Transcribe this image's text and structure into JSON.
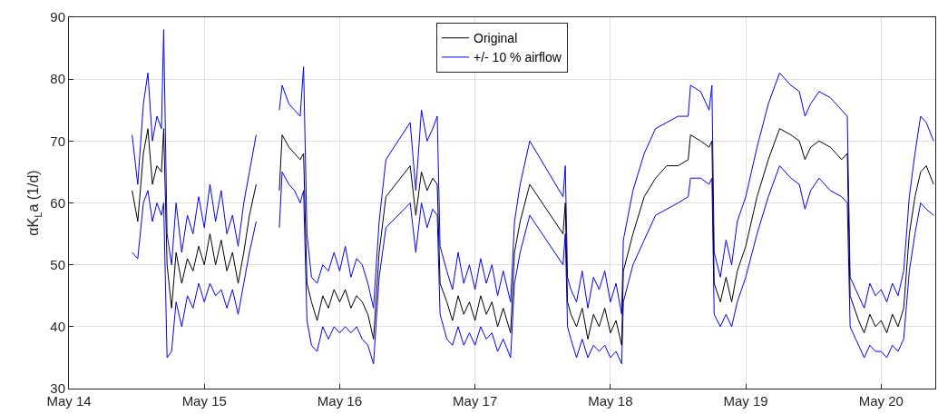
{
  "chart_data": {
    "type": "line",
    "ylabel": "αK$_{L}$a (1/d)",
    "x": [
      "--05-14T11:12",
      "--05-14T12:12",
      "--05-14T13:12",
      "--05-14T14:00",
      "--05-14T14:48",
      "--05-14T15:36",
      "--05-14T16:24",
      "--05-14T16:48",
      "--05-14T17:24",
      "--05-14T18:12",
      "--05-14T19:00",
      "--05-14T20:00",
      "--05-14T21:00",
      "--05-14T22:00",
      "--05-14T23:00",
      "--05-15T00:00",
      "--05-15T01:00",
      "--05-15T02:00",
      "--05-15T03:00",
      "--05-15T04:00",
      "--05-15T05:00",
      "--05-15T06:00",
      "--05-15T07:00",
      "--05-15T08:00",
      "--05-15T09:12",
      "--05-15T11:00",
      "--05-15T13:18",
      "--05-15T13:48",
      "--05-15T15:00",
      "--05-15T16:00",
      "--05-15T17:00",
      "--05-15T17:36",
      "--05-15T18:12",
      "--05-15T19:00",
      "--05-15T20:00",
      "--05-15T21:00",
      "--05-15T22:00",
      "--05-15T23:00",
      "--05-16T00:00",
      "--05-16T01:00",
      "--05-16T02:00",
      "--05-16T03:00",
      "--05-16T04:00",
      "--05-16T05:00",
      "--05-16T06:00",
      "--05-16T07:00",
      "--05-16T08:12",
      "--05-16T12:30",
      "--05-16T13:30",
      "--05-16T14:30",
      "--05-16T15:30",
      "--05-16T16:30",
      "--05-16T17:18",
      "--05-16T17:48",
      "--05-16T19:00",
      "--05-16T20:00",
      "--05-16T21:00",
      "--05-16T22:00",
      "--05-16T23:00",
      "--05-17T00:00",
      "--05-17T01:00",
      "--05-17T02:00",
      "--05-17T03:00",
      "--05-17T04:00",
      "--05-17T05:00",
      "--05-17T06:18",
      "--05-17T07:00",
      "--05-17T08:00",
      "--05-17T09:42",
      "--05-17T15:36",
      "--05-17T16:00",
      "--05-17T16:24",
      "--05-17T17:00",
      "--05-17T18:00",
      "--05-17T19:00",
      "--05-17T20:00",
      "--05-17T21:00",
      "--05-17T22:00",
      "--05-17T23:00",
      "--05-18T00:00",
      "--05-18T01:00",
      "--05-18T02:00",
      "--05-18T02:18",
      "--05-18T04:00",
      "--05-18T06:00",
      "--05-18T08:00",
      "--05-18T10:00",
      "--05-18T12:00",
      "--05-18T13:48",
      "--05-18T14:12",
      "--05-18T16:00",
      "--05-18T17:30",
      "--05-18T18:00",
      "--05-18T18:24",
      "--05-18T19:30",
      "--05-18T20:30",
      "--05-18T21:30",
      "--05-18T22:30",
      "--05-19T00:00",
      "--05-19T02:00",
      "--05-19T04:00",
      "--05-19T06:00",
      "--05-19T08:00",
      "--05-19T09:30",
      "--05-19T10:30",
      "--05-19T11:30",
      "--05-19T13:00",
      "--05-19T15:00",
      "--05-19T17:00",
      "--05-19T18:00",
      "--05-19T18:30",
      "--05-19T20:00",
      "--05-19T21:00",
      "--05-19T22:00",
      "--05-19T23:00",
      "--05-20T00:00",
      "--05-20T01:00",
      "--05-20T02:00",
      "--05-20T03:00",
      "--05-20T04:00",
      "--05-20T05:00",
      "--05-20T06:00",
      "--05-20T07:00",
      "--05-20T08:00",
      "--05-20T09:18"
    ],
    "series": [
      {
        "name": "Original",
        "color": "#000000",
        "values": [
          62,
          57,
          68,
          72,
          63,
          66,
          65,
          72,
          50,
          43,
          52,
          47,
          51,
          49,
          53,
          50,
          55,
          50,
          54,
          49,
          52,
          47,
          52,
          58,
          63,
          null,
          62,
          71,
          69,
          68,
          67,
          68,
          47,
          44,
          41,
          45,
          43,
          46,
          44,
          46,
          43,
          45,
          44,
          42,
          38,
          52,
          61,
          66,
          58,
          65,
          62,
          64,
          63,
          47,
          44,
          41,
          45,
          42,
          44,
          41,
          45,
          42,
          44,
          40,
          43,
          39,
          52,
          57,
          63,
          55,
          60,
          44,
          42,
          40,
          43,
          38,
          42,
          40,
          43,
          39,
          41,
          37,
          49,
          55,
          61,
          64,
          66,
          66,
          67,
          71,
          70,
          69,
          70,
          47,
          44,
          48,
          44,
          49,
          53,
          61,
          67,
          72,
          71,
          70,
          67,
          69,
          70,
          69,
          67,
          68,
          45,
          41,
          39,
          42,
          40,
          41,
          39,
          42,
          40,
          43,
          55,
          61,
          65,
          66,
          63
        ]
      },
      {
        "name": "+/- 10 % airflow",
        "color": "#0000ff",
        "values": [
          71,
          63,
          76,
          81,
          70,
          74,
          72,
          88,
          55,
          50,
          60,
          52,
          58,
          55,
          61,
          56,
          63,
          57,
          62,
          55,
          58,
          53,
          60,
          65,
          71,
          null,
          75,
          79,
          76,
          75,
          74,
          82,
          55,
          48,
          47,
          50,
          49,
          52,
          49,
          53,
          48,
          51,
          50,
          47,
          43,
          57,
          67,
          73,
          62,
          75,
          70,
          72,
          74,
          53,
          49,
          46,
          52,
          47,
          50,
          46,
          51,
          47,
          50,
          45,
          49,
          44,
          57,
          63,
          70,
          61,
          66,
          48,
          46,
          44,
          49,
          43,
          48,
          46,
          49,
          44,
          47,
          42,
          54,
          62,
          68,
          72,
          73,
          74,
          74,
          79,
          78,
          75,
          79,
          52,
          48,
          54,
          50,
          57,
          61,
          69,
          76,
          81,
          79,
          78,
          74,
          76,
          78,
          77,
          75,
          74,
          48,
          45,
          43,
          47,
          45,
          46,
          44,
          47,
          45,
          49,
          61,
          68,
          74,
          73,
          70
        ]
      },
      {
        "color": "#0000ff",
        "values": [
          52,
          51,
          60,
          62,
          57,
          60,
          58,
          60,
          35,
          36,
          44,
          40,
          45,
          43,
          47,
          44,
          47,
          45,
          46,
          43,
          46,
          42,
          47,
          52,
          57,
          null,
          56,
          65,
          63,
          62,
          60,
          62,
          41,
          37,
          36,
          40,
          38,
          40,
          39,
          40,
          39,
          40,
          38,
          37,
          34,
          48,
          56,
          60,
          52,
          60,
          56,
          59,
          58,
          42,
          38,
          37,
          40,
          37,
          39,
          37,
          40,
          38,
          39,
          36,
          38,
          35,
          47,
          52,
          58,
          50,
          55,
          40,
          38,
          35,
          38,
          35,
          37,
          36,
          37,
          35,
          36,
          34,
          44,
          50,
          54,
          58,
          59,
          60,
          61,
          64,
          64,
          63,
          64,
          42,
          40,
          42,
          40,
          44,
          48,
          55,
          61,
          66,
          64,
          63,
          59,
          62,
          64,
          62,
          61,
          60,
          40,
          37,
          35,
          37,
          36,
          36,
          35,
          37,
          36,
          38,
          49,
          55,
          60,
          59,
          58
        ]
      }
    ],
    "xlim": [
      "--05-14",
      "--05-20T09:36"
    ],
    "xticks": [
      {
        "value": "--05-14",
        "label": "May 14"
      },
      {
        "value": "--05-15",
        "label": "May 15"
      },
      {
        "value": "--05-16",
        "label": "May 16"
      },
      {
        "value": "--05-17",
        "label": "May 17"
      },
      {
        "value": "--05-18",
        "label": "May 18"
      },
      {
        "value": "--05-19",
        "label": "May 19"
      },
      {
        "value": "--05-20",
        "label": "May 20"
      }
    ],
    "ylim": [
      30,
      90
    ],
    "yticks": [
      30,
      40,
      50,
      60,
      70,
      80,
      90
    ],
    "grid": true,
    "legend": "top"
  }
}
